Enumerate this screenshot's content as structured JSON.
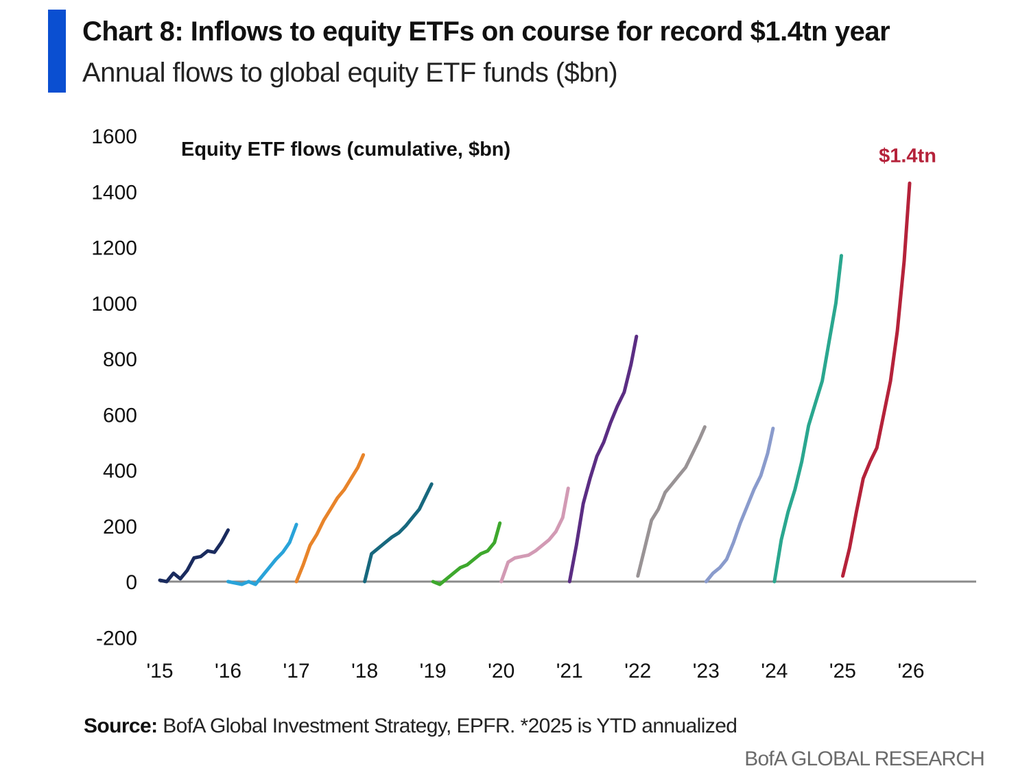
{
  "header": {
    "title": "Chart 8: Inflows to equity ETFs on course for record $1.4tn year",
    "subtitle": "Annual flows to global equity ETF funds ($bn)"
  },
  "footer": {
    "source_label": "Source:",
    "source_text": " BofA Global Investment Strategy, EPFR. *2025 is YTD annualized",
    "brand": "BofA GLOBAL RESEARCH"
  },
  "chart_data": {
    "type": "line",
    "title": "Chart 8: Inflows to equity ETFs on course for record $1.4tn year",
    "subtitle": "Annual flows to global equity ETF funds ($bn)",
    "inner_label": "Equity ETF flows (cumulative, $bn)",
    "annotation": {
      "text": "$1.4tn",
      "x": 2025.95,
      "y": 1530,
      "color": "#b5223a"
    },
    "xlabel": "",
    "ylabel": "",
    "xlim": [
      2015,
      2026.95
    ],
    "ylim": [
      -200,
      1600
    ],
    "y_ticks": [
      -200,
      0,
      200,
      400,
      600,
      800,
      1000,
      1200,
      1400,
      1600
    ],
    "x_ticks": [
      {
        "value": 2015,
        "label": "'15"
      },
      {
        "value": 2016,
        "label": "'16"
      },
      {
        "value": 2017,
        "label": "'17"
      },
      {
        "value": 2018,
        "label": "'18"
      },
      {
        "value": 2019,
        "label": "'19"
      },
      {
        "value": 2020,
        "label": "'20"
      },
      {
        "value": 2021,
        "label": "'21"
      },
      {
        "value": 2022,
        "label": "'22"
      },
      {
        "value": 2023,
        "label": "'23"
      },
      {
        "value": 2024,
        "label": "'24"
      },
      {
        "value": 2025,
        "label": "'25"
      },
      {
        "value": 2026,
        "label": "'26"
      }
    ],
    "grid": false,
    "zero_line": true,
    "series": [
      {
        "name": "2015",
        "color": "#1a2b5e",
        "x": [
          2015.0,
          2015.1,
          2015.2,
          2015.3,
          2015.4,
          2015.5,
          2015.6,
          2015.7,
          2015.8,
          2015.9,
          2016.0
        ],
        "y": [
          5,
          0,
          30,
          10,
          40,
          85,
          90,
          110,
          105,
          140,
          185
        ]
      },
      {
        "name": "2016",
        "color": "#29a3d9",
        "x": [
          2016.0,
          2016.1,
          2016.2,
          2016.3,
          2016.4,
          2016.5,
          2016.6,
          2016.7,
          2016.8,
          2016.9,
          2017.0
        ],
        "y": [
          0,
          -5,
          -10,
          0,
          -10,
          20,
          50,
          80,
          105,
          140,
          205
        ]
      },
      {
        "name": "2017",
        "color": "#e8842a",
        "x": [
          2017.0,
          2017.1,
          2017.2,
          2017.3,
          2017.4,
          2017.5,
          2017.6,
          2017.7,
          2017.8,
          2017.9,
          2017.98
        ],
        "y": [
          0,
          60,
          130,
          170,
          220,
          260,
          300,
          330,
          370,
          410,
          455
        ]
      },
      {
        "name": "2018",
        "color": "#17687e",
        "x": [
          2018.0,
          2018.1,
          2018.2,
          2018.3,
          2018.4,
          2018.5,
          2018.6,
          2018.7,
          2018.8,
          2018.9,
          2018.98
        ],
        "y": [
          0,
          100,
          120,
          140,
          160,
          175,
          200,
          230,
          260,
          310,
          350
        ]
      },
      {
        "name": "2019",
        "color": "#3ea82d",
        "x": [
          2019.0,
          2019.1,
          2019.2,
          2019.3,
          2019.4,
          2019.5,
          2019.6,
          2019.7,
          2019.8,
          2019.9,
          2019.98
        ],
        "y": [
          0,
          -10,
          10,
          30,
          50,
          60,
          80,
          100,
          110,
          140,
          210
        ]
      },
      {
        "name": "2020",
        "color": "#d29ab4",
        "x": [
          2020.0,
          2020.1,
          2020.2,
          2020.3,
          2020.4,
          2020.5,
          2020.6,
          2020.7,
          2020.8,
          2020.9,
          2020.98
        ],
        "y": [
          0,
          70,
          85,
          90,
          95,
          110,
          130,
          150,
          180,
          230,
          335
        ]
      },
      {
        "name": "2021",
        "color": "#5b2d83",
        "x": [
          2021.0,
          2021.1,
          2021.2,
          2021.3,
          2021.4,
          2021.5,
          2021.6,
          2021.7,
          2021.8,
          2021.9,
          2021.98
        ],
        "y": [
          0,
          130,
          280,
          370,
          450,
          500,
          570,
          630,
          680,
          780,
          880
        ]
      },
      {
        "name": "2022",
        "color": "#999395",
        "x": [
          2022.0,
          2022.1,
          2022.2,
          2022.3,
          2022.4,
          2022.5,
          2022.6,
          2022.7,
          2022.8,
          2022.9,
          2022.98
        ],
        "y": [
          20,
          120,
          220,
          260,
          320,
          350,
          380,
          410,
          460,
          510,
          555
        ]
      },
      {
        "name": "2023",
        "color": "#8a9bcc",
        "x": [
          2023.0,
          2023.1,
          2023.2,
          2023.3,
          2023.4,
          2023.5,
          2023.6,
          2023.7,
          2023.8,
          2023.9,
          2023.98
        ],
        "y": [
          0,
          30,
          50,
          80,
          140,
          210,
          270,
          330,
          380,
          460,
          550
        ]
      },
      {
        "name": "2024",
        "color": "#2aa78f",
        "x": [
          2024.0,
          2024.1,
          2024.2,
          2024.3,
          2024.4,
          2024.5,
          2024.6,
          2024.7,
          2024.8,
          2024.9,
          2024.98
        ],
        "y": [
          0,
          150,
          250,
          330,
          430,
          560,
          640,
          720,
          860,
          1000,
          1170
        ]
      },
      {
        "name": "2025",
        "color": "#b5223a",
        "x": [
          2025.0,
          2025.1,
          2025.2,
          2025.3,
          2025.4,
          2025.5,
          2025.6,
          2025.7,
          2025.8,
          2025.9,
          2025.98
        ],
        "y": [
          20,
          120,
          250,
          370,
          430,
          480,
          600,
          720,
          900,
          1150,
          1430
        ]
      }
    ]
  }
}
